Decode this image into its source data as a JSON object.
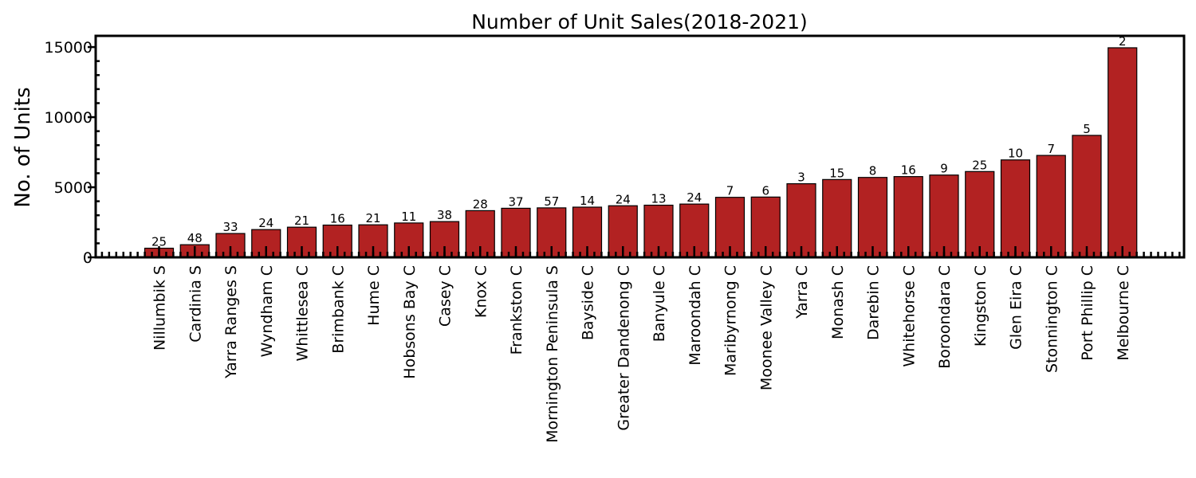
{
  "chart_data": {
    "type": "bar",
    "title": "Number of Unit Sales(2018-2021)",
    "xlabel": "",
    "ylabel": "No. of Units",
    "ylim": [
      0,
      15800
    ],
    "yticks": [
      0,
      5000,
      10000,
      15000
    ],
    "bar_color": "#b22222",
    "bar_edge_color": "#000000",
    "grid": false,
    "categories": [
      "Nillumbik S",
      "Cardinia S",
      "Yarra Ranges S",
      "Wyndham C",
      "Whittlesea C",
      "Brimbank C",
      "Hume C",
      "Hobsons Bay C",
      "Casey C",
      "Knox C",
      "Frankston C",
      "Mornington Peninsula S",
      "Bayside C",
      "Greater Dandenong C",
      "Banyule C",
      "Maroondah C",
      "Maribyrnong C",
      "Moonee Valley C",
      "Yarra C",
      "Monash C",
      "Darebin C",
      "Whitehorse C",
      "Boroondara C",
      "Kingston C",
      "Glen Eira C",
      "Stonnington C",
      "Port Phillip C",
      "Melbourne C"
    ],
    "values": [
      650,
      900,
      1700,
      1980,
      2150,
      2300,
      2320,
      2450,
      2550,
      3330,
      3500,
      3530,
      3580,
      3680,
      3720,
      3800,
      4280,
      4300,
      5250,
      5550,
      5700,
      5760,
      5870,
      6120,
      6950,
      7270,
      8700,
      14950
    ],
    "bar_labels": [
      "25",
      "48",
      "33",
      "24",
      "21",
      "16",
      "21",
      "11",
      "38",
      "28",
      "37",
      "57",
      "14",
      "24",
      "13",
      "24",
      "7",
      "6",
      "3",
      "15",
      "8",
      "16",
      "9",
      "25",
      "10",
      "7",
      "5",
      "2"
    ]
  }
}
